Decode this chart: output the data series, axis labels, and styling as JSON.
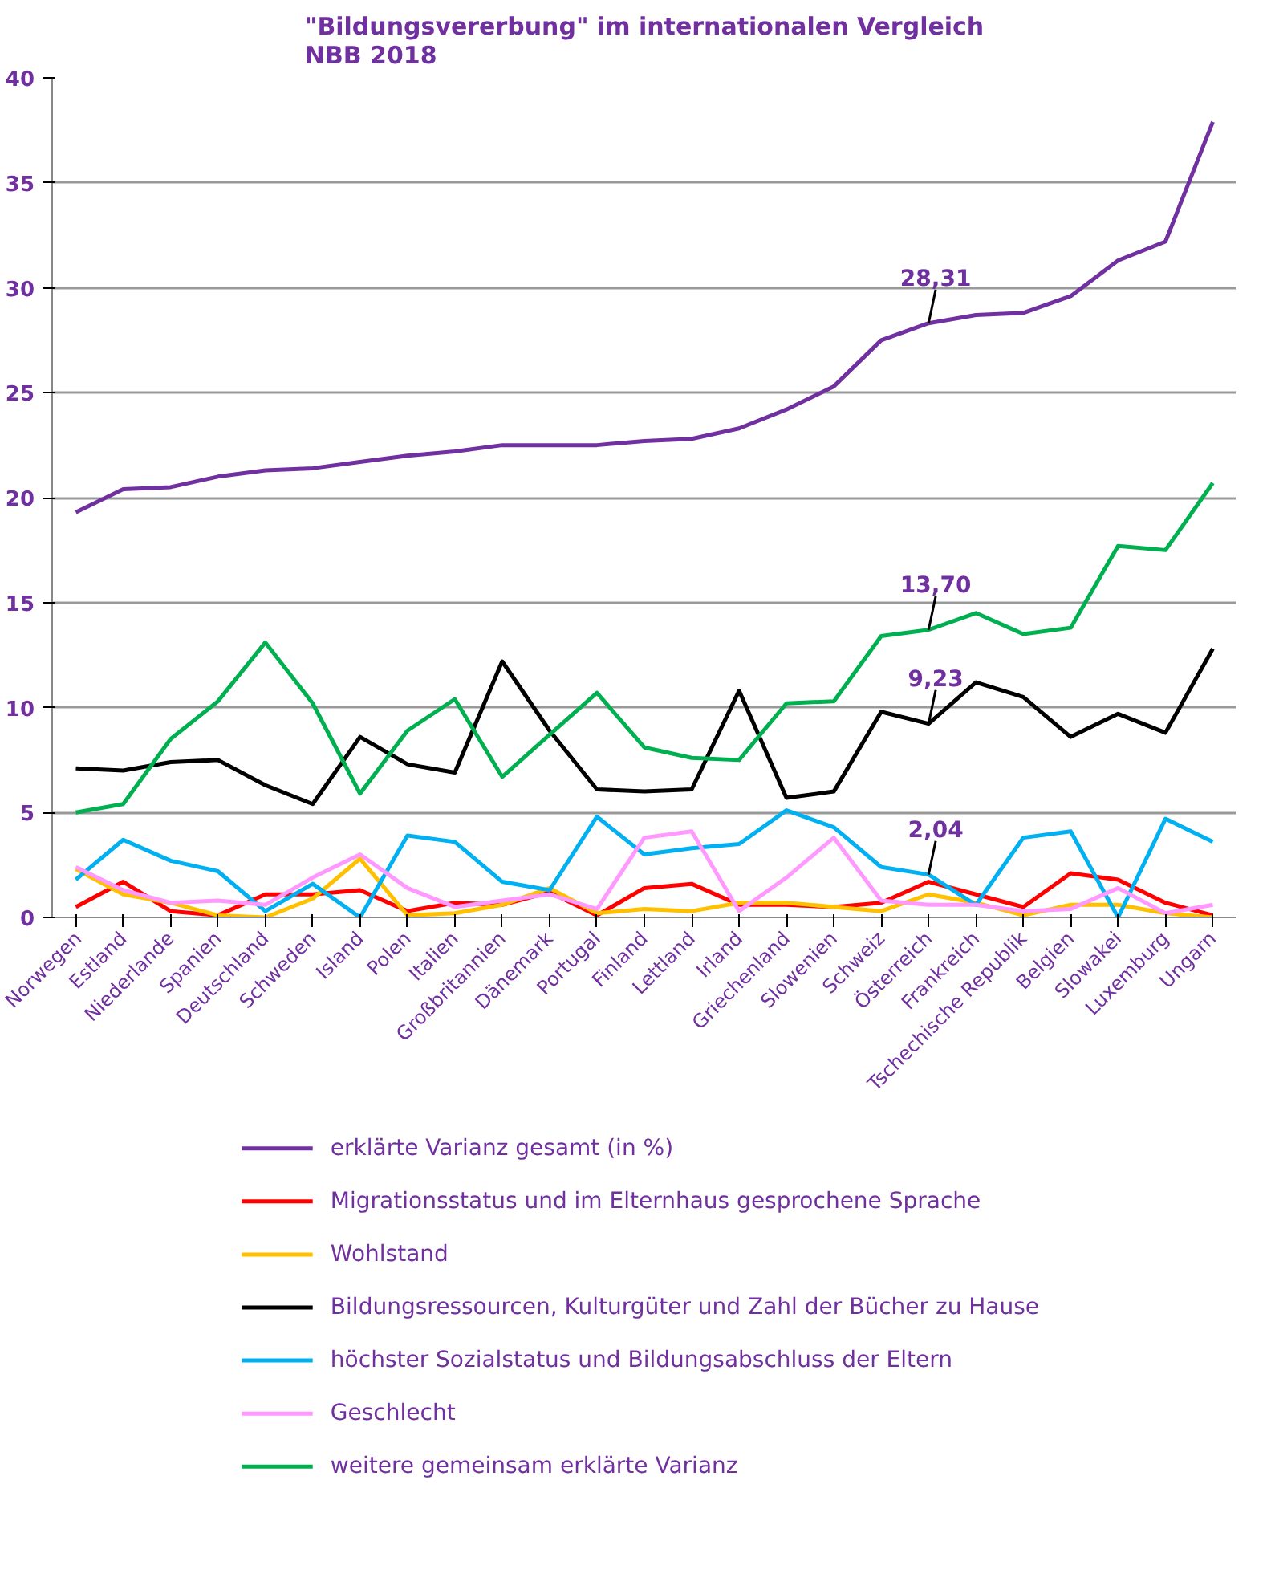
{
  "chart_data": {
    "type": "line",
    "title": "\"Bildungsvererbung\" im internationalen Vergleich\nNBB 2018",
    "categories": [
      "Norwegen",
      "Estland",
      "Niederlande",
      "Spanien",
      "Deutschland",
      "Schweden",
      "Island",
      "Polen",
      "Italien",
      "Großbritannien",
      "Dänemark",
      "Portugal",
      "Finland",
      "Lettland",
      "Irland",
      "Griechenland",
      "Slowenien",
      "Schweiz",
      "Österreich",
      "Frankreich",
      "Tschechische Republik",
      "Belgien",
      "Slowakei",
      "Luxemburg",
      "Ungarn"
    ],
    "series": [
      {
        "name": "erklärte Varianz gesamt (in %)",
        "color": "#7030a0",
        "values": [
          19.3,
          20.4,
          20.5,
          21.0,
          21.3,
          21.4,
          21.7,
          22.0,
          22.2,
          22.5,
          22.5,
          22.5,
          22.7,
          22.8,
          23.3,
          24.2,
          25.3,
          27.5,
          28.31,
          28.7,
          28.8,
          29.6,
          31.3,
          32.2,
          37.9
        ]
      },
      {
        "name": "Migrationsstatus und im Elternhaus gesprochene Sprache",
        "color": "#ff0000",
        "values": [
          0.5,
          1.7,
          0.3,
          0.1,
          1.1,
          1.1,
          1.3,
          0.3,
          0.7,
          0.6,
          1.2,
          0.1,
          1.4,
          1.6,
          0.6,
          0.6,
          0.5,
          0.7,
          1.7,
          1.1,
          0.5,
          2.1,
          1.8,
          0.7,
          0.1
        ]
      },
      {
        "name": "Wohlstand",
        "color": "#ffc000",
        "values": [
          2.3,
          1.1,
          0.7,
          0.1,
          0.0,
          0.9,
          2.8,
          0.1,
          0.2,
          0.6,
          1.4,
          0.2,
          0.4,
          0.3,
          0.7,
          0.7,
          0.5,
          0.3,
          1.1,
          0.7,
          0.1,
          0.6,
          0.6,
          0.2,
          0.0
        ]
      },
      {
        "name": "Bildungsressourcen, Kulturgüter und Zahl der Bücher zu Hause",
        "color": "#000000",
        "values": [
          7.1,
          7.0,
          7.4,
          7.5,
          6.3,
          5.4,
          8.6,
          7.3,
          6.9,
          12.2,
          8.9,
          6.1,
          6.0,
          6.1,
          10.8,
          5.7,
          6.0,
          9.8,
          9.23,
          11.2,
          10.5,
          8.6,
          9.7,
          8.8,
          12.8
        ]
      },
      {
        "name": "höchster Sozialstatus und Bildungsabschluss der Eltern",
        "color": "#00b0f0",
        "values": [
          1.8,
          3.7,
          2.7,
          2.2,
          0.3,
          1.6,
          0.0,
          3.9,
          3.6,
          1.7,
          1.3,
          4.8,
          3.0,
          3.3,
          3.5,
          5.1,
          4.3,
          2.4,
          2.04,
          0.6,
          3.8,
          4.1,
          0.0,
          4.7,
          3.6
        ]
      },
      {
        "name": "Geschlecht",
        "color": "#ff99ff",
        "values": [
          2.4,
          1.3,
          0.7,
          0.8,
          0.6,
          1.9,
          3.0,
          1.4,
          0.5,
          0.8,
          1.1,
          0.4,
          3.8,
          4.1,
          0.3,
          1.9,
          3.8,
          0.8,
          0.6,
          0.6,
          0.3,
          0.4,
          1.4,
          0.2,
          0.6
        ]
      },
      {
        "name": "weitere gemeinsam erklärte Varianz",
        "color": "#00b050",
        "values": [
          5.0,
          5.4,
          8.5,
          10.3,
          13.1,
          10.2,
          5.9,
          8.9,
          10.4,
          6.7,
          8.7,
          10.7,
          8.1,
          7.6,
          7.5,
          10.2,
          10.3,
          13.4,
          13.7,
          14.5,
          13.5,
          13.8,
          17.7,
          17.5,
          20.7
        ]
      }
    ],
    "ylim": [
      0,
      40
    ],
    "yticks": [
      0,
      5,
      10,
      15,
      20,
      25,
      30,
      35,
      40
    ],
    "grid": "y",
    "legend": "bottom",
    "line_style": "solid",
    "marker": "none",
    "annotations": [
      {
        "text": "28,31",
        "x": "Österreich",
        "y": 28.31
      },
      {
        "text": "13,70",
        "x": "Österreich",
        "y": 13.7
      },
      {
        "text": "9,23",
        "x": "Österreich",
        "y": 9.23
      },
      {
        "text": "2,04",
        "x": "Österreich",
        "y": 2.04
      }
    ]
  }
}
